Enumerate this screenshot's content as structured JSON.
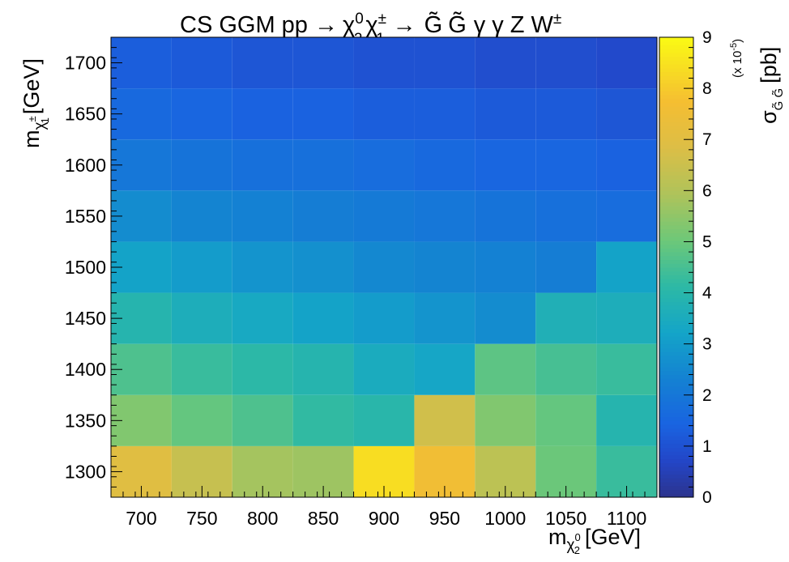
{
  "chart_data": {
    "type": "heatmap",
    "title": {
      "prefix": "CS GGM pp ",
      "arrow": "→",
      "chi": "χ",
      "zero": "0",
      "two": "2",
      "pm": "±",
      "one": "1",
      "gravitino": "G̃",
      "gamma": "γ",
      "z": "Z",
      "w": "W"
    },
    "xlabel": {
      "m": "m",
      "chi": "χ",
      "sup": "0",
      "sub": "2",
      "unit": "[GeV]"
    },
    "ylabel": {
      "m": "m",
      "chi": "χ",
      "sup": "±",
      "sub": "1",
      "unit": "[GeV]"
    },
    "zlabel": {
      "sigma": "σ",
      "sub": "G̃ G̃",
      "unit": "[pb]",
      "factor": "(x 10",
      "exponent": "-5",
      "close": ")"
    },
    "x_ticks": [
      700,
      750,
      800,
      850,
      900,
      950,
      1000,
      1050,
      1100
    ],
    "y_ticks": [
      1300,
      1350,
      1400,
      1450,
      1500,
      1550,
      1600,
      1650,
      1700
    ],
    "z_ticks": [
      0,
      1,
      2,
      3,
      4,
      5,
      6,
      7,
      8,
      9
    ],
    "xlim": [
      675,
      1125
    ],
    "ylim": [
      1275,
      1725
    ],
    "zlim": [
      0,
      9
    ],
    "z_multiplier": "1e-5",
    "cell_size": 50,
    "x_centers": [
      700,
      750,
      800,
      850,
      900,
      950,
      1000,
      1050,
      1100
    ],
    "y_centers": [
      1300,
      1350,
      1400,
      1450,
      1500,
      1550,
      1600,
      1650,
      1700
    ],
    "z": [
      [
        7.0,
        6.4,
        5.8,
        5.7,
        8.4,
        7.6,
        6.2,
        5.0,
        4.3
      ],
      [
        5.3,
        4.9,
        4.6,
        4.2,
        4.0,
        6.6,
        5.3,
        4.9,
        3.9
      ],
      [
        4.6,
        4.3,
        4.1,
        3.9,
        3.5,
        3.3,
        4.8,
        4.5,
        4.3
      ],
      [
        3.9,
        3.6,
        3.4,
        3.2,
        3.0,
        2.8,
        2.6,
        3.7,
        3.6
      ],
      [
        3.2,
        3.0,
        2.8,
        2.7,
        2.5,
        2.4,
        2.3,
        2.2,
        3.2
      ],
      [
        2.6,
        2.4,
        2.3,
        2.2,
        2.1,
        2.0,
        1.9,
        1.8,
        1.7
      ],
      [
        2.0,
        1.9,
        1.8,
        1.8,
        1.7,
        1.6,
        1.5,
        1.5,
        1.4
      ],
      [
        1.6,
        1.5,
        1.4,
        1.4,
        1.3,
        1.3,
        1.2,
        1.2,
        1.1
      ],
      [
        1.3,
        1.2,
        1.1,
        1.1,
        1.0,
        1.0,
        0.9,
        0.9,
        0.8
      ]
    ]
  }
}
